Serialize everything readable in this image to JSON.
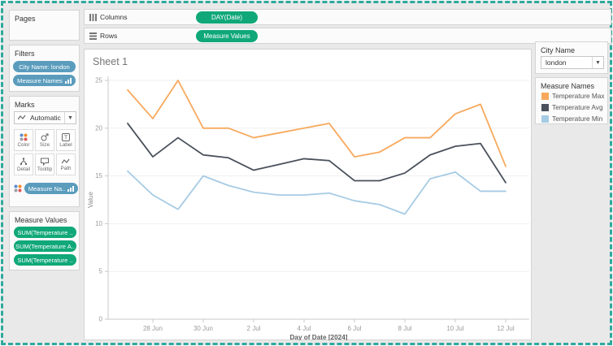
{
  "colors": {
    "accent_border": "#2fa89d",
    "pill_green": "#10A878",
    "pill_blue": "#5B9CBD"
  },
  "shelves": {
    "columns": {
      "label": "Columns",
      "pill": "DAY(Date)"
    },
    "rows": {
      "label": "Rows",
      "pill": "Measure Values"
    }
  },
  "sidebar": {
    "pages": {
      "title": "Pages"
    },
    "filters": {
      "title": "Filters",
      "pill_city": "City Name: london",
      "pill_measure": "Measure Names"
    },
    "marks": {
      "title": "Marks",
      "mark_type": "Automatic",
      "buttons": [
        {
          "label": "Color"
        },
        {
          "label": "Size"
        },
        {
          "label": "Label"
        },
        {
          "label": "Detail"
        },
        {
          "label": "Tooltip"
        },
        {
          "label": "Path"
        }
      ],
      "color_pill": "Measure Na.."
    },
    "measure_values": {
      "title": "Measure Values",
      "pills": [
        "SUM(Temperature ..",
        "SUM(Temperature A..",
        "SUM(Temperature .."
      ]
    }
  },
  "worksheet": {
    "title": "Sheet 1"
  },
  "right_panel": {
    "city_filter": {
      "title": "City Name",
      "value": "london"
    },
    "legend": {
      "title": "Measure Names",
      "items": [
        {
          "label": "Temperature Max"
        },
        {
          "label": "Temperature Avg"
        },
        {
          "label": "Temperature Min"
        }
      ]
    }
  },
  "chart_data": {
    "type": "line",
    "title": "Sheet 1",
    "xlabel": "Day of Date [2024]",
    "ylabel": "Value",
    "ylim": [
      0,
      25
    ],
    "yticks": [
      0,
      5,
      10,
      15,
      20,
      25
    ],
    "x": [
      "27 Jun",
      "28 Jun",
      "29 Jun",
      "30 Jun",
      "1 Jul",
      "2 Jul",
      "3 Jul",
      "4 Jul",
      "5 Jul",
      "6 Jul",
      "7 Jul",
      "8 Jul",
      "9 Jul",
      "10 Jul",
      "11 Jul",
      "12 Jul"
    ],
    "x_tick_labels": [
      "28 Jun",
      "30 Jun",
      "2 Jul",
      "4 Jul",
      "6 Jul",
      "8 Jul",
      "10 Jul",
      "12 Jul"
    ],
    "x_tick_indices": [
      1,
      3,
      5,
      7,
      9,
      11,
      13,
      15
    ],
    "grid": true,
    "legend_position": "right",
    "series": [
      {
        "name": "Temperature Max",
        "color": "#F8A95E",
        "values": [
          24,
          21,
          25,
          20,
          20,
          19,
          19.5,
          20,
          20.5,
          17,
          17.5,
          19,
          19,
          21.5,
          22.5,
          16
        ]
      },
      {
        "name": "Temperature Avg",
        "color": "#4A515C",
        "values": [
          20.5,
          17,
          19,
          17.2,
          16.9,
          15.6,
          16.2,
          16.8,
          16.6,
          14.5,
          14.5,
          15.3,
          17.2,
          18.1,
          18.4,
          14.3
        ]
      },
      {
        "name": "Temperature Min",
        "color": "#A6CBE4",
        "values": [
          15.5,
          13,
          11.5,
          15,
          14,
          13.3,
          13,
          13,
          13.2,
          12.4,
          12,
          11,
          14.7,
          15.4,
          13.4,
          13.4
        ]
      }
    ]
  }
}
